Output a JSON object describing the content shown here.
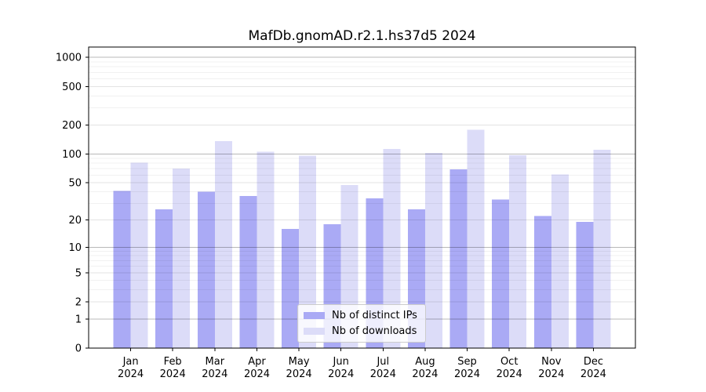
{
  "title": "MafDb.gnomAD.r2.1.hs37d5 2024",
  "legend": {
    "items": [
      {
        "label": "Nb of distinct IPs",
        "color": "#aaaaf5"
      },
      {
        "label": "Nb of downloads",
        "color": "#dcdcf8"
      }
    ]
  },
  "chart_data": {
    "type": "bar",
    "title": "MafDb.gnomAD.r2.1.hs37d5 2024",
    "categories": [
      "Jan 2024",
      "Feb 2024",
      "Mar 2024",
      "Apr 2024",
      "May 2024",
      "Jun 2024",
      "Jul 2024",
      "Aug 2024",
      "Sep 2024",
      "Oct 2024",
      "Nov 2024",
      "Dec 2024"
    ],
    "series": [
      {
        "name": "Nb of distinct IPs",
        "color": "#aaaaf5",
        "values": [
          41,
          26,
          40,
          36,
          16,
          18,
          34,
          26,
          69,
          33,
          22,
          19
        ]
      },
      {
        "name": "Nb of downloads",
        "color": "#dcdcf8",
        "values": [
          81,
          70,
          136,
          105,
          96,
          47,
          113,
          102,
          178,
          97,
          61,
          110
        ]
      }
    ],
    "xlabel": "",
    "ylabel": "",
    "yscale": "log1p",
    "y_ticks": [
      0,
      1,
      2,
      5,
      10,
      20,
      50,
      100,
      200,
      500,
      1000
    ],
    "ylim": [
      0,
      1270
    ],
    "grid": true,
    "grid_on_top": true,
    "legend_position": "lower center",
    "colors": {
      "axis": "#000000",
      "grid_major": "rgba(0,0,0,0.28)",
      "grid_mid": "rgba(0,0,0,0.11)",
      "grid_minor": "rgba(0,0,0,0.055)"
    }
  }
}
